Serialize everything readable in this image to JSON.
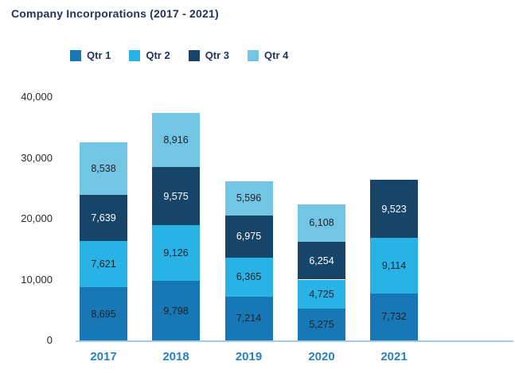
{
  "title": "Company Incorporations (2017 - 2021)",
  "colors": {
    "qtr1": "#1778b5",
    "qtr2": "#29b2e6",
    "qtr3": "#17456a",
    "qtr4": "#73c5e4",
    "axis_line": "#a3cbe8",
    "title_text": "#223459",
    "x_tick_text": "#2b80c4",
    "y_tick_text": "#242a31",
    "data_label_dark": "#1d2229",
    "data_label_light": "#ffffff"
  },
  "legend": [
    {
      "label": "Qtr 1",
      "color_key": "qtr1"
    },
    {
      "label": "Qtr 2",
      "color_key": "qtr2"
    },
    {
      "label": "Qtr 3",
      "color_key": "qtr3"
    },
    {
      "label": "Qtr 4",
      "color_key": "qtr4"
    }
  ],
  "chart_data": {
    "type": "bar",
    "stacked": true,
    "title": "Company Incorporations (2017 - 2021)",
    "categories": [
      "2017",
      "2018",
      "2019",
      "2020",
      "2021"
    ],
    "series": [
      {
        "name": "Qtr 1",
        "color_key": "qtr1",
        "values": [
          8695,
          9798,
          7214,
          5275,
          7732
        ]
      },
      {
        "name": "Qtr 2",
        "color_key": "qtr2",
        "values": [
          7621,
          9126,
          6365,
          4725,
          9114
        ]
      },
      {
        "name": "Qtr 3",
        "color_key": "qtr3",
        "values": [
          7639,
          9575,
          6975,
          6254,
          9523
        ]
      },
      {
        "name": "Qtr 4",
        "color_key": "qtr4",
        "values": [
          8538,
          8916,
          5596,
          6108,
          null
        ]
      }
    ],
    "totals": [
      32493,
      37415,
      26150,
      22362,
      26369
    ],
    "data_labels": true,
    "data_label_format": "thousands-comma",
    "xlabel": "",
    "ylabel": "",
    "ylim": [
      0,
      40000
    ],
    "y_ticks": [
      "40,000",
      "30,000",
      "20,000",
      "10,000",
      "0"
    ],
    "y_tick_values": [
      40000,
      30000,
      20000,
      10000,
      0
    ],
    "grid": false,
    "legend_position": "top"
  }
}
